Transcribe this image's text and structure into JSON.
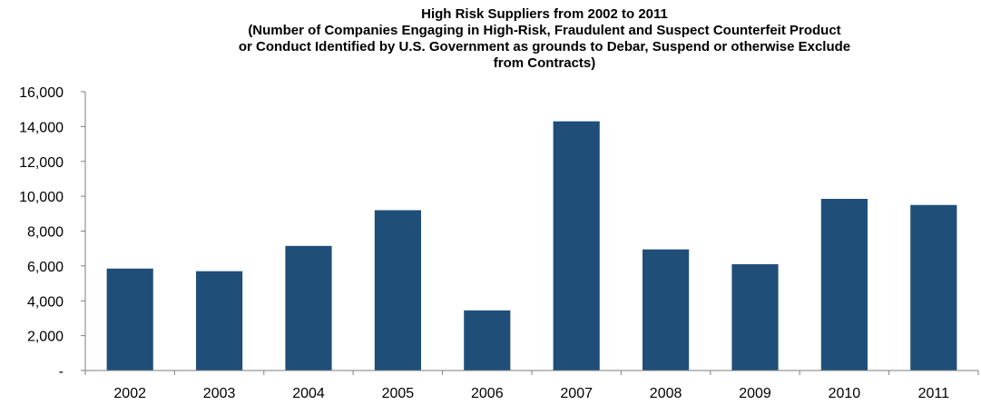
{
  "chart_data": {
    "type": "bar",
    "title": "High Risk Suppliers from 2002 to 2011",
    "subtitle_lines": [
      "(Number of Companies Engaging in High-Risk, Fraudulent and Suspect Counterfeit Product",
      "or Conduct Identified by U.S. Government as grounds to Debar, Suspend or otherwise Exclude",
      "from Contracts)"
    ],
    "categories": [
      "2002",
      "2003",
      "2004",
      "2005",
      "2006",
      "2007",
      "2008",
      "2009",
      "2010",
      "2011"
    ],
    "values": [
      5850,
      5700,
      7150,
      9200,
      3450,
      14300,
      6950,
      6100,
      9850,
      9500
    ],
    "y_tick_labels": [
      "-",
      "2,000",
      "4,000",
      "6,000",
      "8,000",
      "10,000",
      "12,000",
      "14,000",
      "16,000"
    ],
    "ylim": [
      0,
      16000
    ],
    "bar_color": "#1f4e79",
    "axis_color": "#7f7f7f",
    "grid": false,
    "legend": "none"
  }
}
